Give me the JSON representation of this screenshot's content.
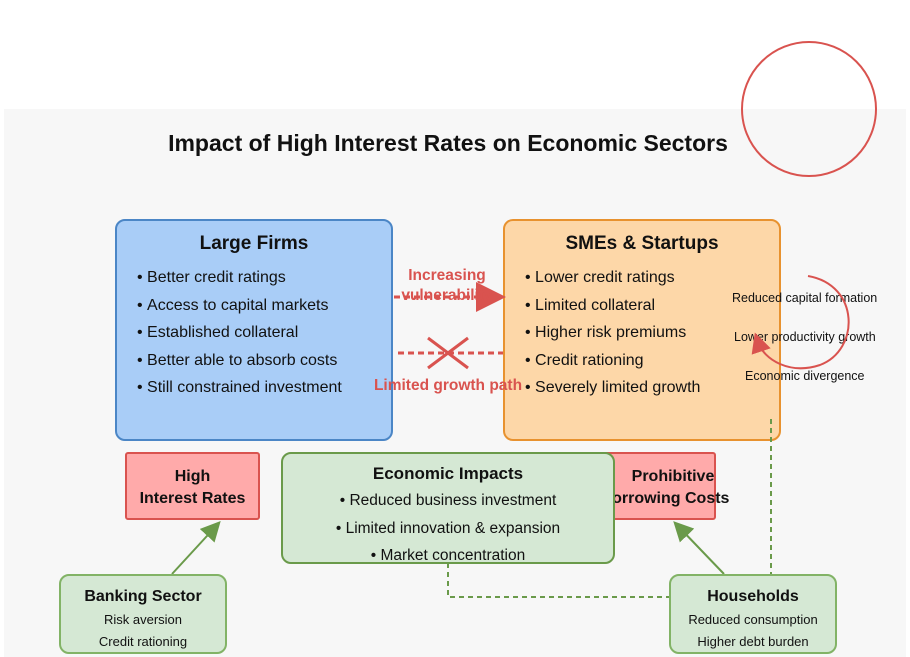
{
  "title": "Impact of High Interest Rates on Economic Sectors",
  "large_firms": {
    "heading": "Large Firms",
    "bullets": [
      "Better credit ratings",
      "Access to capital markets",
      "Established collateral",
      "Better able to absorb costs",
      "Still constrained investment"
    ]
  },
  "smes": {
    "heading": "SMEs & Startups",
    "bullets": [
      "Lower credit ratings",
      "Limited collateral",
      "Higher risk premiums",
      "Credit rationing",
      "Severely limited growth"
    ]
  },
  "arrows": {
    "increasing_line1": "Increasing",
    "increasing_line2": "vulnerability",
    "limited_growth": "Limited growth path"
  },
  "cycle": {
    "items": [
      "Reduced capital formation",
      "Lower productivity growth",
      "Economic divergence"
    ]
  },
  "high_rates": {
    "line1": "High",
    "line2": "Interest Rates"
  },
  "prohibitive": {
    "line1": "Prohibitive",
    "line2": "Borrowing Costs"
  },
  "economic_impacts": {
    "heading": "Economic Impacts",
    "bullets": [
      "• Reduced business investment",
      "• Limited innovation & expansion",
      "• Market concentration"
    ]
  },
  "banking": {
    "heading": "Banking Sector",
    "line1": "Risk aversion",
    "line2": "Credit rationing"
  },
  "households": {
    "heading": "Households",
    "line1": "Reduced consumption",
    "line2": "Higher debt burden"
  },
  "colors": {
    "blue_fill": "#a9cdf7",
    "orange_fill": "#fdd7a8",
    "red_fill": "#ffaaaa",
    "green_fill": "#d5e8d4",
    "red_accent": "#d9534f",
    "green_line": "#6a9a4a"
  }
}
